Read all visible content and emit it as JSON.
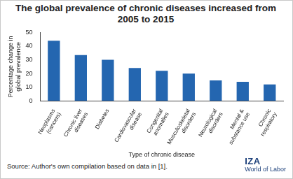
{
  "chart_data": {
    "type": "bar",
    "title": "The global prevalence of chronic diseases increased from 2005 to 2015",
    "x_label": "Type of chronic disease",
    "y_label": "Percentage change in global prevalence",
    "categories": [
      "Neoplasms (cancers)",
      "Chronic liver diseases",
      "Diabetes",
      "Cardiovascular disease",
      "Congenital anomalies",
      "Musculoskeletal disorders",
      "Neurological disorders",
      "Mental & substance use",
      "Chronic respiratory"
    ],
    "values": [
      44,
      33.5,
      30,
      24,
      22,
      20,
      15,
      14,
      12
    ],
    "color": "#2466b0",
    "ylim": [
      0,
      50
    ],
    "yticks": [
      0,
      10,
      20,
      30,
      40,
      50
    ],
    "grid": false,
    "source": "Source: Author's own compilation based on data in [1].",
    "logo": [
      "IZA",
      "World of Labor"
    ]
  }
}
